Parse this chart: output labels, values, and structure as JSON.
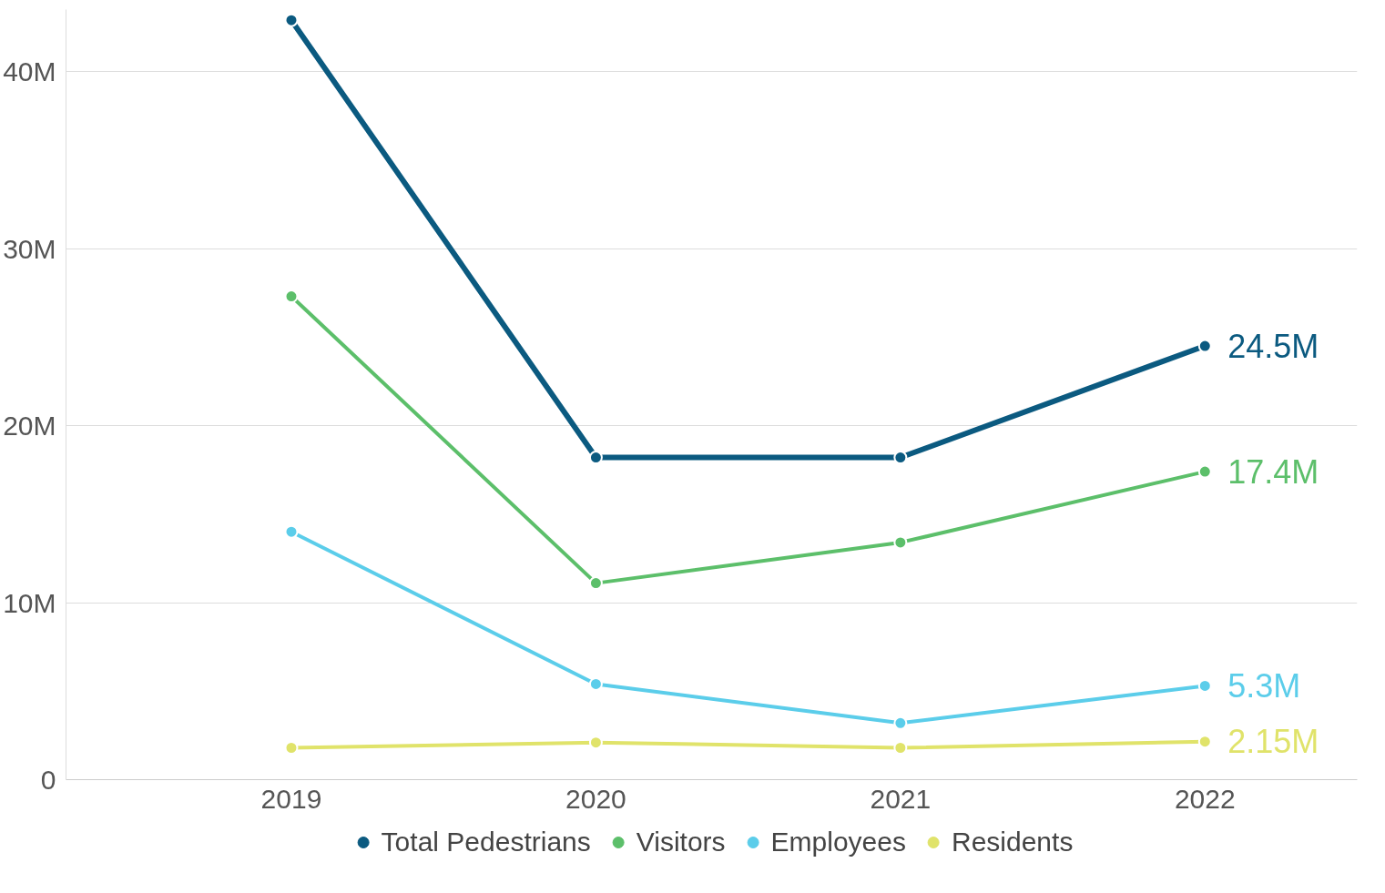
{
  "chart_data": {
    "type": "line",
    "categories": [
      "2019",
      "2020",
      "2021",
      "2022"
    ],
    "series": [
      {
        "name": "Total Pedestrians",
        "color": "#0b5a80",
        "values": [
          42.9,
          18.2,
          18.2,
          24.5
        ],
        "value_labels": [
          null,
          null,
          null,
          "24.5M"
        ]
      },
      {
        "name": "Visitors",
        "color": "#5cbf6a",
        "values": [
          27.3,
          11.1,
          13.4,
          17.4
        ],
        "value_labels": [
          null,
          null,
          null,
          "17.4M"
        ]
      },
      {
        "name": "Employees",
        "color": "#5bcdea",
        "values": [
          14.0,
          5.4,
          3.2,
          5.3
        ],
        "value_labels": [
          null,
          null,
          null,
          "5.3M"
        ]
      },
      {
        "name": "Residents",
        "color": "#e0e36a",
        "values": [
          1.8,
          2.1,
          1.8,
          2.15
        ],
        "value_labels": [
          null,
          null,
          null,
          "2.15M"
        ]
      }
    ],
    "ylim": [
      0,
      43.5
    ],
    "yticks": [
      {
        "value": 0,
        "label": "0"
      },
      {
        "value": 10,
        "label": "10M"
      },
      {
        "value": 20,
        "label": "20M"
      },
      {
        "value": 30,
        "label": "30M"
      },
      {
        "value": 40,
        "label": "40M"
      }
    ],
    "grid": "y",
    "legend": "bottom",
    "marker": "circle",
    "line_style": "solid"
  }
}
